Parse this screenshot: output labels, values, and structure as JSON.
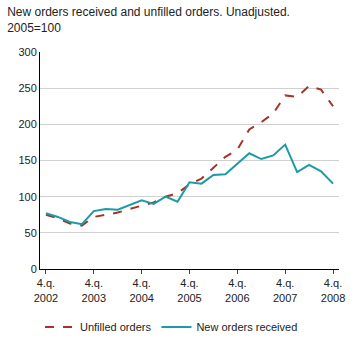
{
  "chart_data": {
    "type": "line",
    "title": "New orders received and unfilled orders. Unadjusted.",
    "subtitle": "2005=100",
    "categories": [
      "4.q. 2002",
      null,
      null,
      null,
      "4.q. 2003",
      null,
      null,
      null,
      "4.q. 2004",
      null,
      null,
      null,
      "4.q. 2005",
      null,
      null,
      null,
      "4.q. 2006",
      null,
      null,
      null,
      "4.q. 2007",
      null,
      null,
      null,
      "4.q. 2008"
    ],
    "series": [
      {
        "name": "Unfilled orders",
        "color": "#a83228",
        "line_style": "dashed",
        "values": [
          75,
          70,
          63,
          60,
          72,
          75,
          78,
          83,
          87,
          92,
          100,
          105,
          117,
          125,
          140,
          155,
          165,
          193,
          203,
          215,
          240,
          238,
          253,
          248,
          225
        ]
      },
      {
        "name": "New orders received",
        "color": "#1a9ba6",
        "line_style": "solid",
        "values": [
          77,
          72,
          65,
          62,
          80,
          83,
          82,
          88,
          95,
          90,
          100,
          93,
          120,
          118,
          130,
          131,
          145,
          160,
          152,
          157,
          172,
          134,
          144,
          135,
          118
        ]
      }
    ],
    "ylim": [
      0,
      300
    ],
    "yticks": [
      0,
      50,
      100,
      150,
      200,
      250,
      300
    ],
    "grid": true,
    "legend": "bottom"
  }
}
